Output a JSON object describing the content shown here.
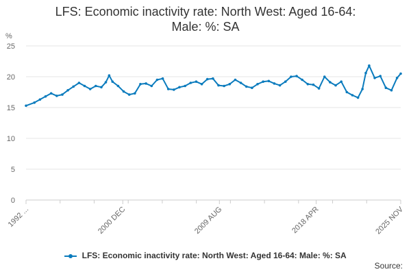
{
  "chart_data": {
    "type": "line",
    "title_line1": "LFS: Economic inactivity rate: North West: Aged 16-64:",
    "title_line2": "Male: %: SA",
    "ylabel": "%",
    "ylim": [
      0,
      25
    ],
    "yticks": [
      0,
      5,
      10,
      15,
      20,
      25
    ],
    "xtick_labels": [
      "1992 ...",
      "2000 DEC",
      "2009 AUG",
      "2018 APR",
      "2025 NOV"
    ],
    "xtick_positions": [
      1992.25,
      2000.92,
      2009.58,
      2018.25,
      2025.83
    ],
    "x_range": [
      1992.25,
      2025.83
    ],
    "grid": true,
    "legend_position": "bottom",
    "series": [
      {
        "name": "LFS: Economic inactivity rate: North West: Aged 16-64: Male: %: SA",
        "color": "#0a7bbd",
        "x": [
          1992.25,
          1993.0,
          1993.5,
          1994.0,
          1994.5,
          1995.0,
          1995.5,
          1996.0,
          1996.5,
          1997.0,
          1997.5,
          1998.0,
          1998.5,
          1999.0,
          1999.4,
          1999.7,
          2000.0,
          2000.5,
          2001.0,
          2001.5,
          2002.0,
          2002.5,
          2003.0,
          2003.5,
          2004.0,
          2004.5,
          2005.0,
          2005.5,
          2006.0,
          2006.5,
          2007.0,
          2007.5,
          2008.0,
          2008.5,
          2009.0,
          2009.5,
          2010.0,
          2010.5,
          2011.0,
          2011.5,
          2012.0,
          2012.5,
          2013.0,
          2013.5,
          2014.0,
          2014.5,
          2015.0,
          2015.5,
          2016.0,
          2016.5,
          2017.0,
          2017.5,
          2018.0,
          2018.5,
          2019.0,
          2019.5,
          2020.0,
          2020.5,
          2021.0,
          2021.5,
          2022.0,
          2022.4,
          2022.7,
          2023.0,
          2023.5,
          2024.0,
          2024.5,
          2025.0,
          2025.5,
          2025.83
        ],
        "values": [
          15.3,
          15.8,
          16.3,
          16.8,
          17.3,
          16.9,
          17.1,
          17.8,
          18.4,
          19.0,
          18.5,
          18.0,
          18.5,
          18.3,
          19.1,
          20.2,
          19.2,
          18.5,
          17.6,
          17.1,
          17.3,
          18.8,
          18.9,
          18.5,
          19.5,
          19.7,
          18.0,
          17.9,
          18.3,
          18.5,
          19.0,
          19.2,
          18.8,
          19.6,
          19.7,
          18.6,
          18.5,
          18.8,
          19.5,
          19.0,
          18.4,
          18.2,
          18.8,
          19.2,
          19.3,
          18.9,
          18.6,
          19.2,
          20.0,
          20.1,
          19.5,
          18.8,
          18.7,
          18.1,
          20.0,
          19.1,
          18.6,
          19.2,
          17.5,
          17.0,
          16.6,
          18.0,
          20.6,
          21.8,
          19.8,
          20.1,
          18.2,
          17.8,
          19.8,
          20.5
        ]
      }
    ]
  },
  "legend": {
    "label": "LFS: Economic inactivity rate: North West: Aged 16-64: Male: %: SA"
  },
  "footer": {
    "source_label": "Source:"
  }
}
